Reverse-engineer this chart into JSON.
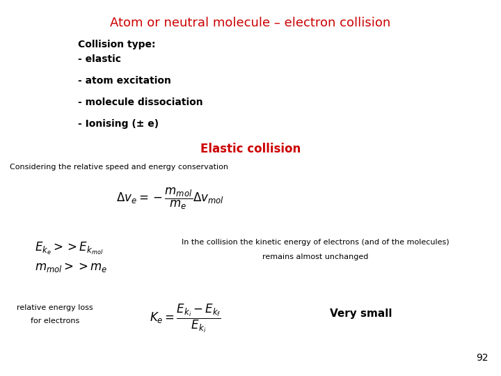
{
  "title": "Atom or neutral molecule – electron collision",
  "title_color": "#cc0000",
  "background_color": "#ffffff",
  "collision_type_header": "Collision type:",
  "collision_types": [
    "- elastic",
    "- atom excitation",
    "- molecule dissociation",
    "- Ionising (± e)"
  ],
  "elastic_title": "Elastic collision",
  "elastic_title_color": "#cc0000",
  "considering_text": "Considering the relative speed and energy conservation",
  "formula_main": "$\\Delta v_e = -\\dfrac{m_{mol}}{m_e} \\Delta v_{mol}$",
  "ek_condition1": "$E_{k_e} >> E_{k_{mol}}$",
  "ek_condition2": "$m_{mol} >> m_e$",
  "in_collision_text1": "In the collision the kinetic energy of electrons (and of the molecules)",
  "in_collision_text2": "remains almost unchanged",
  "relative_energy_text1": "relative energy loss",
  "relative_energy_text2": "for electrons",
  "formula_ke": "$K_e = \\dfrac{E_{k_i} - E_{k_f}}{E_{k_i}}$",
  "very_small_text": "Very small",
  "page_number": "92"
}
